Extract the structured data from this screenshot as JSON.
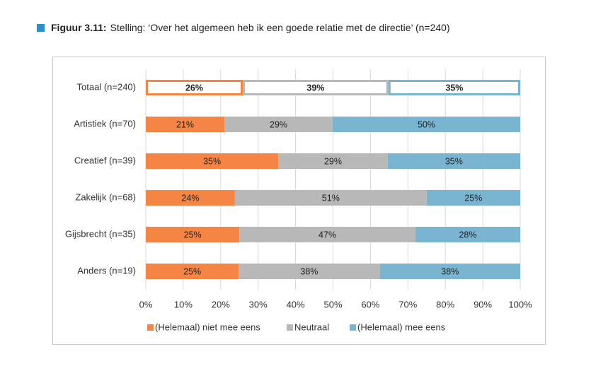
{
  "chart_data": {
    "type": "stacked_bar_horizontal",
    "figure_label": "Figuur 3.11:",
    "title": "Stelling: ‘Over het algemeen heb ik een goede relatie met de directie’ (n=240)",
    "categories": [
      "Totaal (n=240)",
      "Artistiek (n=70)",
      "Creatief (n=39)",
      "Zakelijk (n=68)",
      "Gijsbrecht (n=35)",
      "Anders (n=19)"
    ],
    "series": [
      {
        "name": "(Helemaal) niet mee eens",
        "color": "#f58545",
        "values": [
          25.9,
          21.0,
          35.4,
          23.8,
          25.0,
          24.8
        ],
        "value_labels": [
          "26%",
          "21%",
          "35%",
          "24%",
          "25%",
          "25%"
        ]
      },
      {
        "name": "Neutraal",
        "color": "#b8b8b8",
        "values": [
          38.9,
          28.9,
          29.2,
          51.2,
          47.0,
          37.7
        ],
        "value_labels": [
          "39%",
          "29%",
          "29%",
          "51%",
          "47%",
          "38%"
        ]
      },
      {
        "name": "(Helemaal) mee eens",
        "color": "#79b4d0",
        "values": [
          35.2,
          50.1,
          35.4,
          25.0,
          28.0,
          37.5
        ],
        "value_labels": [
          "35%",
          "50%",
          "35%",
          "25%",
          "28%",
          "38%"
        ]
      }
    ],
    "xlim": [
      0,
      100
    ],
    "xticks": [
      {
        "value": 0,
        "label": "0%"
      },
      {
        "value": 10,
        "label": "10%"
      },
      {
        "value": 20,
        "label": "20%"
      },
      {
        "value": 30,
        "label": "30%"
      },
      {
        "value": 40,
        "label": "40%"
      },
      {
        "value": 50,
        "label": "50%"
      },
      {
        "value": 60,
        "label": "60%"
      },
      {
        "value": 70,
        "label": "70%"
      },
      {
        "value": 80,
        "label": "80%"
      },
      {
        "value": 90,
        "label": "90%"
      },
      {
        "value": 100,
        "label": "100%"
      }
    ],
    "grid": true
  }
}
